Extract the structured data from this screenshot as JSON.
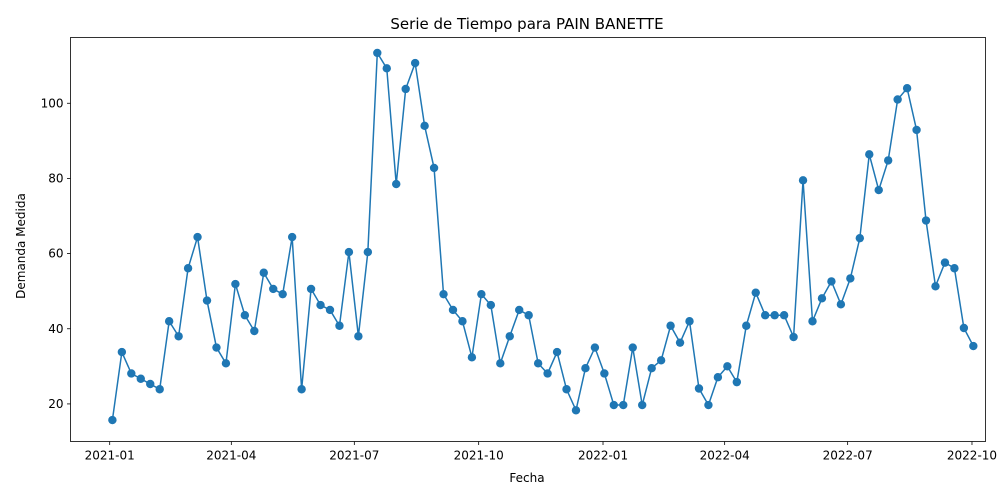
{
  "chart_data": {
    "type": "line",
    "title": "Serie de Tiempo para PAIN BANETTE",
    "xlabel": "Fecha",
    "ylabel": "Demanda Medida",
    "x_tick_labels": [
      "2021-01",
      "2021-04",
      "2021-07",
      "2021-10",
      "2022-01",
      "2022-04",
      "2022-07",
      "2022-10"
    ],
    "x_tick_dates": [
      "2021-01-01",
      "2021-04-01",
      "2021-07-01",
      "2021-10-01",
      "2022-01-01",
      "2022-04-01",
      "2022-07-01",
      "2022-10-01"
    ],
    "y_ticks": [
      20,
      40,
      60,
      80,
      100
    ],
    "xlim": [
      "2020-12-03",
      "2022-10-11"
    ],
    "ylim": [
      10,
      117.5
    ],
    "grid": false,
    "color": "#1f77b4",
    "series": [
      {
        "x": [
          "2021-01-03",
          "2021-01-10",
          "2021-01-17",
          "2021-01-24",
          "2021-01-31",
          "2021-02-07",
          "2021-02-14",
          "2021-02-21",
          "2021-02-28",
          "2021-03-07",
          "2021-03-14",
          "2021-03-21",
          "2021-03-28",
          "2021-04-04",
          "2021-04-11",
          "2021-04-18",
          "2021-04-25",
          "2021-05-02",
          "2021-05-09",
          "2021-05-16",
          "2021-05-23",
          "2021-05-30",
          "2021-06-06",
          "2021-06-13",
          "2021-06-20",
          "2021-06-27",
          "2021-07-04",
          "2021-07-11",
          "2021-07-18",
          "2021-07-25",
          "2021-08-01",
          "2021-08-08",
          "2021-08-15",
          "2021-08-22",
          "2021-08-29",
          "2021-09-05",
          "2021-09-12",
          "2021-09-19",
          "2021-09-26",
          "2021-10-03",
          "2021-10-10",
          "2021-10-17",
          "2021-10-24",
          "2021-10-31",
          "2021-11-07",
          "2021-11-14",
          "2021-11-21",
          "2021-11-28",
          "2021-12-05",
          "2021-12-12",
          "2021-12-19",
          "2021-12-26",
          "2022-01-02",
          "2022-01-09",
          "2022-01-16",
          "2022-01-23",
          "2022-01-30",
          "2022-02-06",
          "2022-02-13",
          "2022-02-20",
          "2022-02-27",
          "2022-03-06",
          "2022-03-13",
          "2022-03-20",
          "2022-03-27",
          "2022-04-03",
          "2022-04-10",
          "2022-04-17",
          "2022-04-24",
          "2022-05-01",
          "2022-05-08",
          "2022-05-15",
          "2022-05-22",
          "2022-05-29",
          "2022-06-05",
          "2022-06-12",
          "2022-06-19",
          "2022-06-26",
          "2022-07-03",
          "2022-07-10",
          "2022-07-17",
          "2022-07-24",
          "2022-07-31",
          "2022-08-07",
          "2022-08-14",
          "2022-08-21",
          "2022-08-28",
          "2022-09-04",
          "2022-09-11",
          "2022-09-18",
          "2022-09-25",
          "2022-10-02"
        ],
        "values": [
          15.7,
          33.8,
          28.1,
          26.7,
          25.3,
          23.9,
          42,
          38,
          56.1,
          64.4,
          47.5,
          35,
          30.8,
          51.9,
          43.6,
          39.4,
          54.9,
          50.6,
          49.2,
          64.4,
          23.9,
          50.6,
          46.3,
          45,
          40.8,
          60.4,
          38,
          60.4,
          113.4,
          109.3,
          78.5,
          103.8,
          110.7,
          94,
          82.8,
          49.2,
          45,
          42,
          32.4,
          49.2,
          46.3,
          30.8,
          38,
          45,
          43.6,
          30.8,
          28.1,
          33.8,
          23.9,
          18.3,
          29.5,
          35,
          28.1,
          19.7,
          19.7,
          35,
          19.7,
          29.5,
          31.6,
          40.8,
          36.3,
          42,
          24.1,
          19.7,
          27.1,
          30,
          25.8,
          40.8,
          49.6,
          43.6,
          43.6,
          43.6,
          37.8,
          79.5,
          42,
          48.1,
          52.6,
          46.5,
          53.4,
          64.1,
          86.4,
          76.9,
          84.8,
          101,
          104,
          92.9,
          68.8,
          51.3,
          57.6,
          56.1,
          40.2,
          35.4
        ]
      }
    ]
  }
}
